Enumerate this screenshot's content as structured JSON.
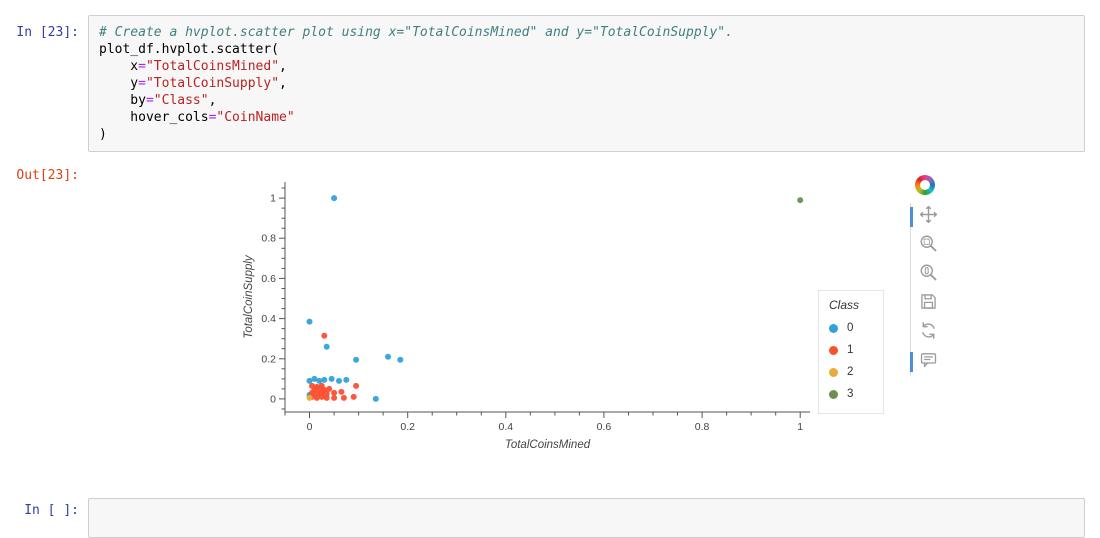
{
  "input_cell": {
    "prompt": "In [23]:",
    "code": [
      [
        {
          "t": "# Create a hvplot.scatter plot using x=\"TotalCoinsMined\" and y=\"TotalCoinSupply\".",
          "c": "comment"
        }
      ],
      [
        {
          "t": "plot_df.hvplot.scatter(",
          "c": "plain"
        }
      ],
      [
        {
          "t": "    x",
          "c": "plain"
        },
        {
          "t": "=",
          "c": "op"
        },
        {
          "t": "\"TotalCoinsMined\"",
          "c": "str"
        },
        {
          "t": ",",
          "c": "plain"
        }
      ],
      [
        {
          "t": "    y",
          "c": "plain"
        },
        {
          "t": "=",
          "c": "op"
        },
        {
          "t": "\"TotalCoinSupply\"",
          "c": "str"
        },
        {
          "t": ",",
          "c": "plain"
        }
      ],
      [
        {
          "t": "    by",
          "c": "plain"
        },
        {
          "t": "=",
          "c": "op"
        },
        {
          "t": "\"Class\"",
          "c": "str"
        },
        {
          "t": ",",
          "c": "plain"
        }
      ],
      [
        {
          "t": "    hover_cols",
          "c": "plain"
        },
        {
          "t": "=",
          "c": "op"
        },
        {
          "t": "\"CoinName\"",
          "c": "str"
        }
      ],
      [
        {
          "t": ")",
          "c": "plain"
        }
      ]
    ]
  },
  "output_cell": {
    "prompt": "Out[23]:"
  },
  "next_cell": {
    "prompt": "In [ ]:"
  },
  "toolbar": {
    "logo": "bokeh-logo",
    "tools": [
      "pan",
      "box-zoom",
      "wheel-zoom",
      "save",
      "reset",
      "hover"
    ],
    "active": [
      "pan",
      "hover"
    ]
  },
  "chart_data": {
    "type": "scatter",
    "title": "",
    "xlabel": "TotalCoinsMined",
    "ylabel": "TotalCoinSupply",
    "xlim": [
      -0.05,
      1.02
    ],
    "ylim": [
      -0.065,
      1.08
    ],
    "xticks": [
      0,
      0.2,
      0.4,
      0.6,
      0.8,
      1
    ],
    "yticks": [
      0,
      0.2,
      0.4,
      0.6,
      0.8,
      1
    ],
    "grid": false,
    "legend": {
      "title": "Class",
      "position": "right"
    },
    "series": [
      {
        "name": "0",
        "color": "#30a2da",
        "points": [
          [
            0.05,
            1.0
          ],
          [
            0.0,
            0.385
          ],
          [
            0.035,
            0.26
          ],
          [
            0.095,
            0.195
          ],
          [
            0.16,
            0.21
          ],
          [
            0.185,
            0.195
          ],
          [
            0.0,
            0.09
          ],
          [
            0.01,
            0.1
          ],
          [
            0.02,
            0.09
          ],
          [
            0.03,
            0.095
          ],
          [
            0.045,
            0.1
          ],
          [
            0.06,
            0.09
          ],
          [
            0.075,
            0.095
          ],
          [
            0.0,
            0.02
          ],
          [
            0.135,
            0.0
          ]
        ]
      },
      {
        "name": "1",
        "color": "#fc4f30",
        "points": [
          [
            0.03,
            0.315
          ],
          [
            0.005,
            0.065
          ],
          [
            0.015,
            0.06
          ],
          [
            0.025,
            0.065
          ],
          [
            0.095,
            0.065
          ],
          [
            0.01,
            0.045
          ],
          [
            0.02,
            0.05
          ],
          [
            0.03,
            0.045
          ],
          [
            0.04,
            0.05
          ],
          [
            0.005,
            0.03
          ],
          [
            0.015,
            0.025
          ],
          [
            0.025,
            0.03
          ],
          [
            0.035,
            0.025
          ],
          [
            0.05,
            0.03
          ],
          [
            0.065,
            0.035
          ],
          [
            0.005,
            0.01
          ],
          [
            0.015,
            0.005
          ],
          [
            0.025,
            0.01
          ],
          [
            0.035,
            0.005
          ],
          [
            0.05,
            0.005
          ],
          [
            0.07,
            0.005
          ],
          [
            0.09,
            0.01
          ]
        ]
      },
      {
        "name": "2",
        "color": "#e5ae38",
        "points": [
          [
            0.0,
            0.005
          ]
        ]
      },
      {
        "name": "3",
        "color": "#6d904f",
        "points": [
          [
            1.0,
            0.99
          ]
        ]
      }
    ]
  }
}
